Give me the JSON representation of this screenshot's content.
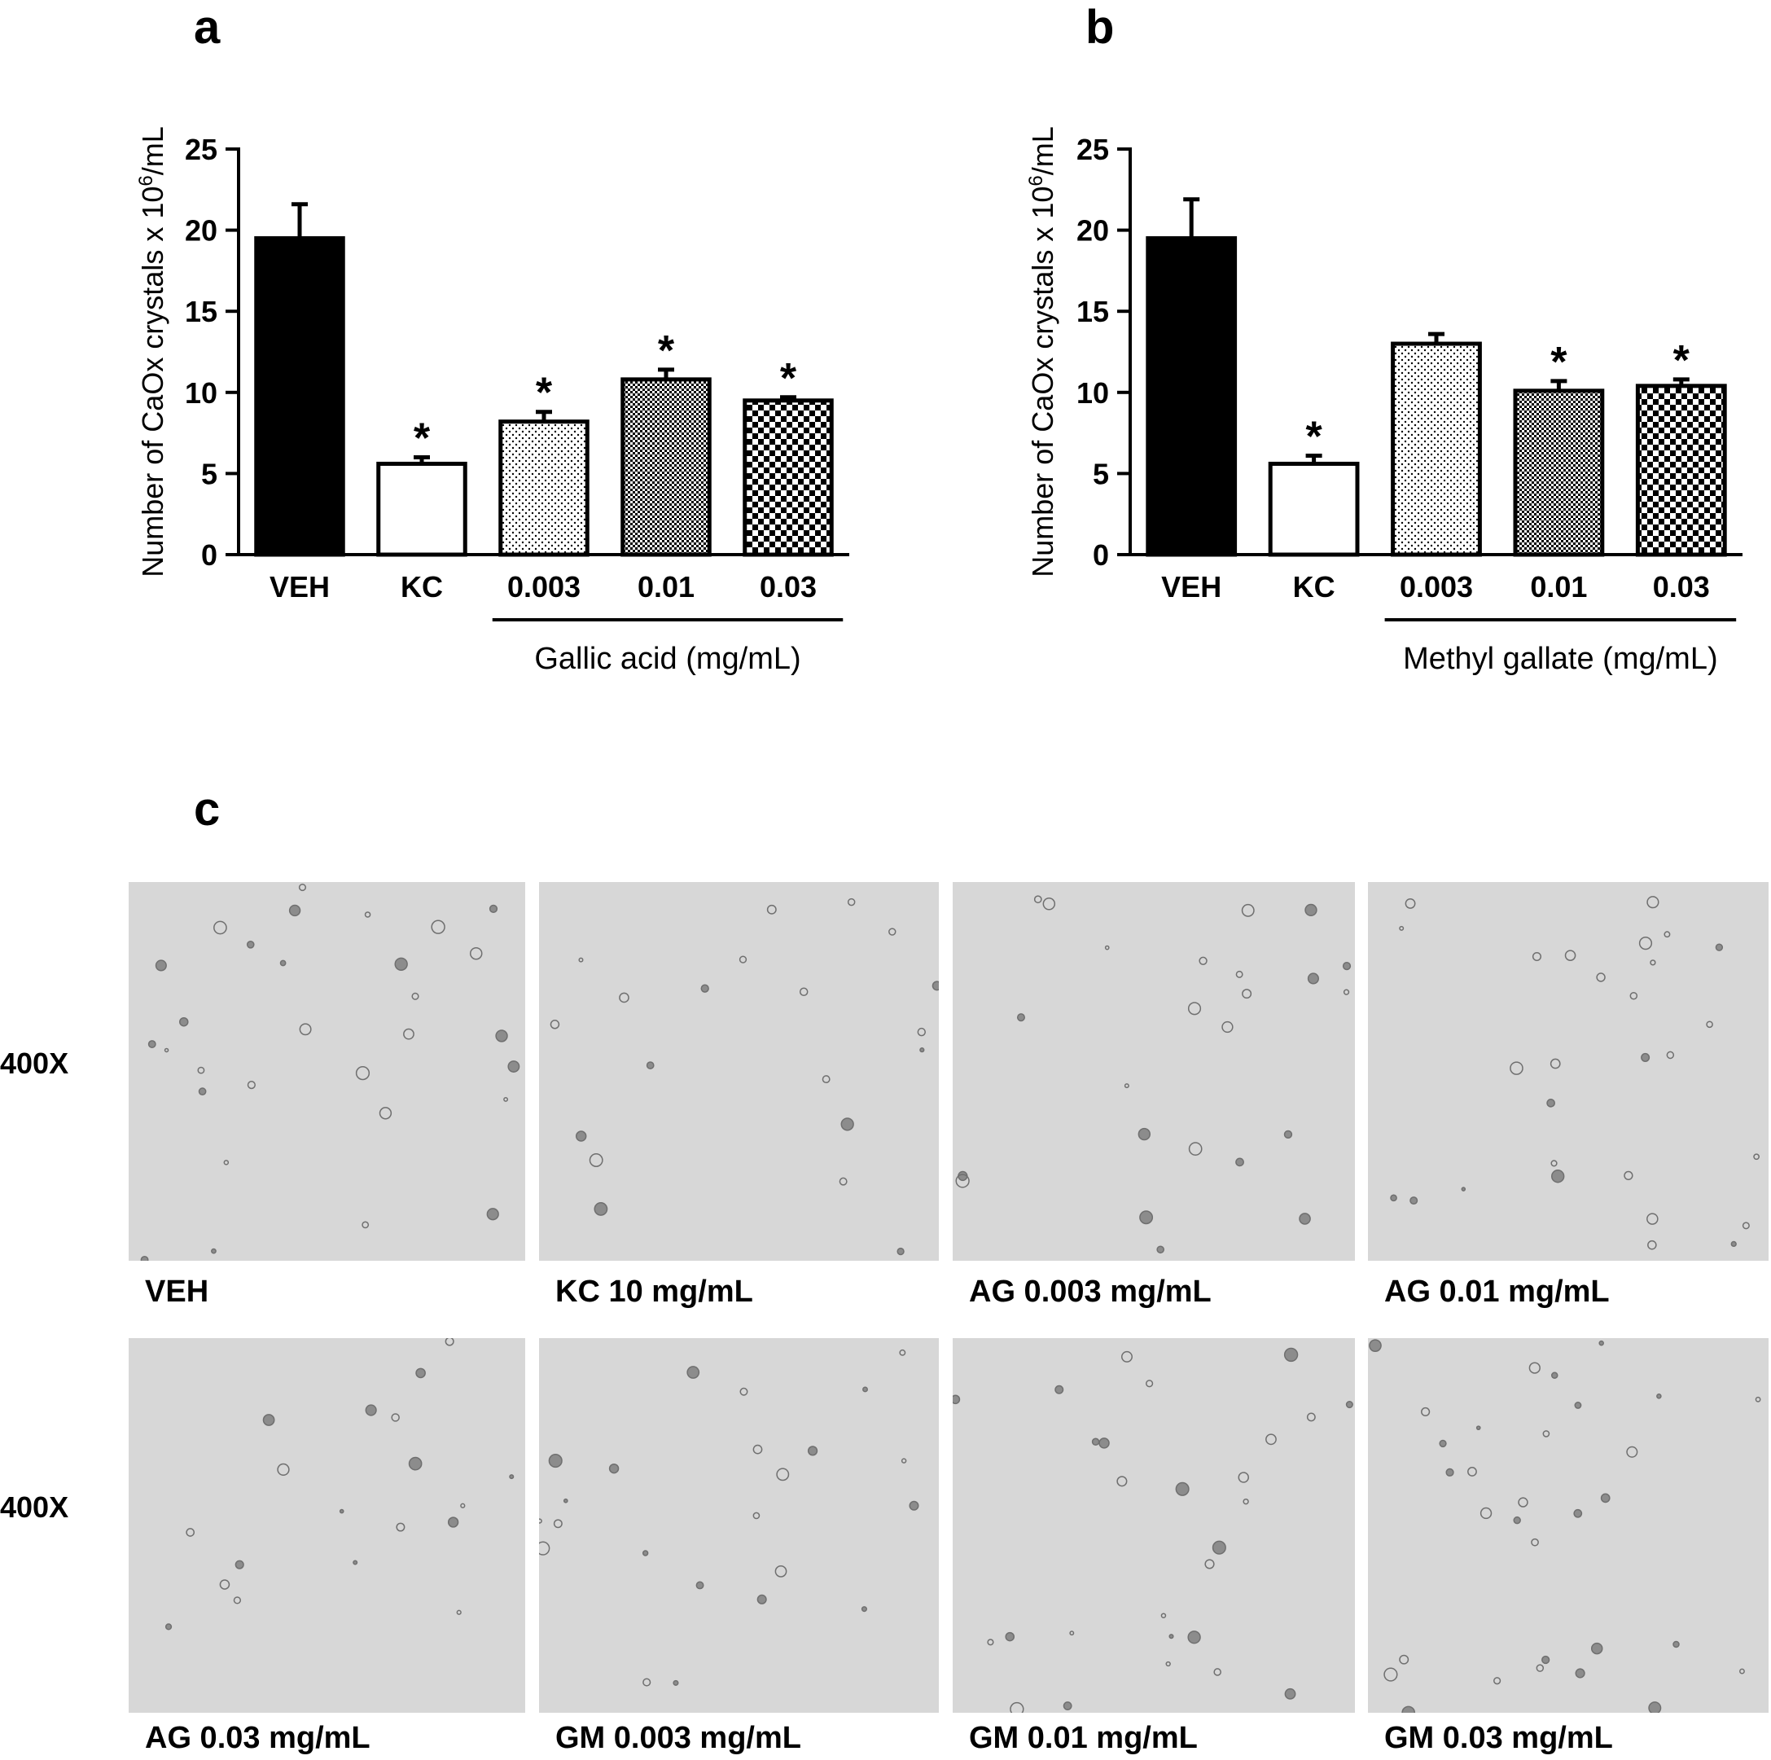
{
  "panels": {
    "a": "a",
    "b": "b",
    "c": "c"
  },
  "chart_data": [
    {
      "type": "bar",
      "panel": "a",
      "categories": [
        "VEH",
        "KC",
        "0.003",
        "0.01",
        "0.03"
      ],
      "values": [
        19.5,
        5.6,
        8.2,
        10.8,
        9.5
      ],
      "errors": [
        2.1,
        0.4,
        0.6,
        0.6,
        0.2
      ],
      "significant": [
        false,
        true,
        true,
        true,
        true
      ],
      "significance_marker": "*",
      "patterns": [
        "solid-black",
        "white",
        "dots",
        "fine-check",
        "coarse-check"
      ],
      "ylabel_main": "Number of CaOx crystals x 10",
      "ylabel_sup": "6",
      "ylabel_tail": "/mL",
      "group_label": "Gallic acid (mg/mL)",
      "group_span": [
        "0.003",
        "0.03"
      ],
      "ylim": [
        0,
        25
      ],
      "yticks": [
        0,
        5,
        10,
        15,
        20,
        25
      ],
      "grid": false,
      "legend": "none"
    },
    {
      "type": "bar",
      "panel": "b",
      "categories": [
        "VEH",
        "KC",
        "0.003",
        "0.01",
        "0.03"
      ],
      "values": [
        19.5,
        5.6,
        13.0,
        10.1,
        10.4
      ],
      "errors": [
        2.4,
        0.5,
        0.6,
        0.6,
        0.4
      ],
      "significant": [
        false,
        true,
        false,
        true,
        true
      ],
      "significance_marker": "*",
      "patterns": [
        "solid-black",
        "white",
        "dots",
        "fine-check",
        "coarse-check"
      ],
      "ylabel_main": "Number of CaOx crystals x 10",
      "ylabel_sup": "6",
      "ylabel_tail": "/mL",
      "group_label": "Methyl gallate (mg/mL)",
      "group_span": [
        "0.003",
        "0.03"
      ],
      "ylim": [
        0,
        25
      ],
      "yticks": [
        0,
        5,
        10,
        15,
        20,
        25
      ],
      "grid": false,
      "legend": "none"
    }
  ],
  "micrographs": {
    "magnification": [
      "400X",
      "400X"
    ],
    "rows": [
      [
        {
          "prefix": "VEH",
          "dose": ""
        },
        {
          "prefix": "KC",
          "dose": "10 mg/mL"
        },
        {
          "prefix": "AG",
          "dose": "0.003 mg/mL"
        },
        {
          "prefix": "AG",
          "dose": "0.01 mg/mL"
        }
      ],
      [
        {
          "prefix": "AG",
          "dose": "0.03 mg/mL"
        },
        {
          "prefix": "GM",
          "dose": "0.003 mg/mL"
        },
        {
          "prefix": "GM",
          "dose": "0.01 mg/mL"
        },
        {
          "prefix": "GM",
          "dose": "0.03 mg/mL"
        }
      ]
    ]
  }
}
